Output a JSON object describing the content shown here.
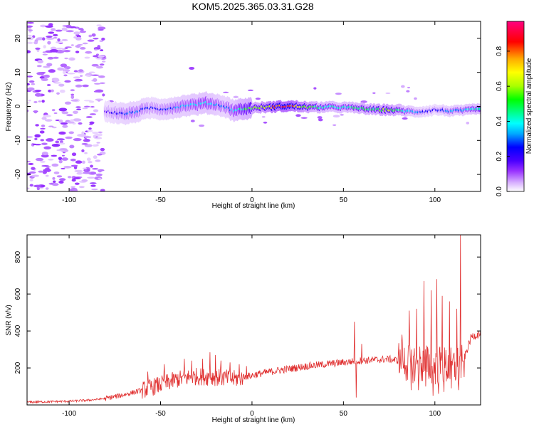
{
  "title": "KOM5.2025.365.03.31.G28",
  "colors": {
    "snr_line": "#e03030",
    "axis": "#000000"
  },
  "chart_data": [
    {
      "type": "heatmap",
      "name": "spectrogram",
      "xlabel": "Height of straight line (km)",
      "ylabel": "Frequency (Hz)",
      "xlim": [
        -123,
        125
      ],
      "ylim": [
        -25,
        25
      ],
      "xticks": [
        -100,
        -50,
        0,
        50,
        100
      ],
      "yticks": [
        -20,
        -10,
        0,
        10,
        20
      ],
      "colorbar": {
        "label": "Normalized spectral amplitude",
        "range": [
          0,
          0.97
        ],
        "ticks": [
          "0.0",
          "0.2",
          "0.4",
          "0.6",
          "0.8"
        ],
        "tick_values": [
          0,
          0.2,
          0.4,
          0.6,
          0.8
        ],
        "colormap": [
          "#ffffff",
          "#d9b3ff",
          "#9933ff",
          "#4b00ff",
          "#0000ff",
          "#00aaff",
          "#00ffff",
          "#00ff80",
          "#00ff00",
          "#aaff00",
          "#ffff00",
          "#ffaa00",
          "#ff0000",
          "#ff0080"
        ]
      },
      "ridge": {
        "x": [
          -80,
          -75,
          -70,
          -65,
          -60,
          -55,
          -50,
          -45,
          -40,
          -35,
          -30,
          -25,
          -20,
          -15,
          -10,
          -5,
          0,
          5,
          10,
          15,
          20,
          25,
          30,
          35,
          40,
          45,
          50,
          55,
          60,
          65,
          70,
          75,
          80,
          85,
          90,
          95,
          100,
          105,
          110,
          115,
          120,
          125
        ],
        "frequency": [
          -1.5,
          -1.8,
          -2.2,
          -1.8,
          -1.0,
          -0.4,
          -0.8,
          -0.6,
          -0.1,
          0.4,
          0.6,
          1.0,
          0.6,
          0.0,
          -1.2,
          -0.8,
          -0.5,
          -0.3,
          -0.2,
          0.0,
          0.1,
          0.0,
          -0.2,
          -0.3,
          -0.2,
          -0.2,
          -0.3,
          -0.4,
          -0.6,
          -0.9,
          -1.0,
          -1.0,
          -1.2,
          -1.4,
          -1.6,
          -1.4,
          -1.0,
          -1.2,
          -1.4,
          -1.2,
          -1.0,
          -0.8
        ],
        "amplitude": [
          0.25,
          0.3,
          0.35,
          0.38,
          0.35,
          0.3,
          0.32,
          0.35,
          0.4,
          0.42,
          0.45,
          0.48,
          0.42,
          0.35,
          0.45,
          0.6,
          0.65,
          0.7,
          0.85,
          0.95,
          0.97,
          0.85,
          0.72,
          0.62,
          0.55,
          0.52,
          0.5,
          0.55,
          0.62,
          0.6,
          0.68,
          0.72,
          0.6,
          0.45,
          0.38,
          0.3,
          0.28,
          0.35,
          0.4,
          0.42,
          0.5,
          0.55
        ]
      }
    },
    {
      "type": "line",
      "name": "snr",
      "xlabel": "Height of straight line (km)",
      "ylabel": "SNR (v/v)",
      "xlim": [
        -123,
        125
      ],
      "ylim": [
        0,
        920
      ],
      "xticks": [
        -100,
        -50,
        0,
        50,
        100
      ],
      "yticks": [
        200,
        400,
        600,
        800
      ],
      "trend_x": [
        -123,
        -110,
        -100,
        -90,
        -80,
        -70,
        -60,
        -50,
        -40,
        -30,
        -20,
        -10,
        0,
        10,
        20,
        30,
        40,
        50,
        60,
        70,
        75,
        80,
        85,
        90,
        95,
        100,
        105,
        110,
        115,
        120,
        125
      ],
      "trend_y": [
        15,
        18,
        20,
        25,
        35,
        55,
        80,
        110,
        140,
        155,
        150,
        140,
        160,
        180,
        195,
        210,
        220,
        230,
        240,
        245,
        248,
        240,
        230,
        225,
        220,
        215,
        210,
        205,
        220,
        370,
        385
      ],
      "spikes": [
        {
          "x": -57,
          "y": 180
        },
        {
          "x": -48,
          "y": 220
        },
        {
          "x": -37,
          "y": 250
        },
        {
          "x": -33,
          "y": 240
        },
        {
          "x": -27,
          "y": 250
        },
        {
          "x": -23,
          "y": 285
        },
        {
          "x": -20,
          "y": 270
        },
        {
          "x": -17,
          "y": 240
        },
        {
          "x": -12,
          "y": 230
        },
        {
          "x": -7,
          "y": 220
        },
        {
          "x": -3,
          "y": 210
        },
        {
          "x": 56,
          "y": 450
        },
        {
          "x": 57,
          "y": 40
        },
        {
          "x": 60,
          "y": 330
        },
        {
          "x": 82,
          "y": 380
        },
        {
          "x": 86,
          "y": 510
        },
        {
          "x": 87,
          "y": 80
        },
        {
          "x": 90,
          "y": 520
        },
        {
          "x": 91,
          "y": 80
        },
        {
          "x": 94,
          "y": 670
        },
        {
          "x": 95,
          "y": 100
        },
        {
          "x": 98,
          "y": 620
        },
        {
          "x": 99,
          "y": 50
        },
        {
          "x": 101,
          "y": 680
        },
        {
          "x": 102,
          "y": 60
        },
        {
          "x": 104,
          "y": 590
        },
        {
          "x": 105,
          "y": 70
        },
        {
          "x": 108,
          "y": 560
        },
        {
          "x": 109,
          "y": 90
        },
        {
          "x": 112,
          "y": 520
        },
        {
          "x": 113,
          "y": 80
        },
        {
          "x": 114,
          "y": 920
        },
        {
          "x": 116,
          "y": 150
        }
      ]
    }
  ]
}
